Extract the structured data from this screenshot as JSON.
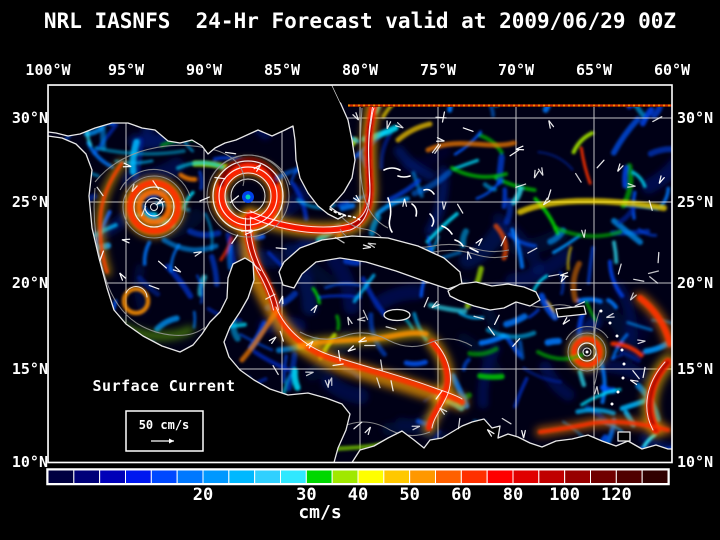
{
  "title": "NRL IASNFS  24-Hr Forecast valid at 2009/06/29 00Z",
  "map": {
    "top_axis_labels": [
      "100°W",
      "95°W",
      "90°W",
      "85°W",
      "80°W",
      "75°W",
      "70°W",
      "65°W",
      "60°W"
    ],
    "left_axis_labels": [
      "30°N",
      "25°N",
      "20°N",
      "15°N",
      "10°N"
    ],
    "right_axis_labels": [
      "30°N",
      "25°N",
      "20°N",
      "15°N",
      "10°N"
    ],
    "overlay_label": "Surface Current",
    "scale_value": "50 cm/s"
  },
  "colorbar": {
    "tick_labels": [
      "20",
      "30",
      "40",
      "50",
      "60",
      "80",
      "100",
      "120"
    ],
    "tick_positions_pct": [
      25,
      41.67,
      50,
      58.33,
      66.67,
      75,
      83.33,
      91.67
    ],
    "unit": "cm/s",
    "segment_colors": [
      "#000040",
      "#000078",
      "#0000B8",
      "#0018F0",
      "#0048FF",
      "#0078FF",
      "#0098FF",
      "#00B8FF",
      "#30D0FF",
      "#30E8FF",
      "#00D800",
      "#A0E800",
      "#FFFF00",
      "#FFC800",
      "#FF9800",
      "#FF6000",
      "#FF3000",
      "#FF0000",
      "#E00000",
      "#C00000",
      "#980000",
      "#700000",
      "#500000",
      "#300000"
    ]
  },
  "colors": {
    "background": "#000000",
    "ocean": "#000016",
    "frame": "#ffffff",
    "grid": "#ffffff",
    "coastline": "#e8e8e8",
    "contour": "#9a9a9a",
    "land": "#000000",
    "text": "#ffffff"
  }
}
